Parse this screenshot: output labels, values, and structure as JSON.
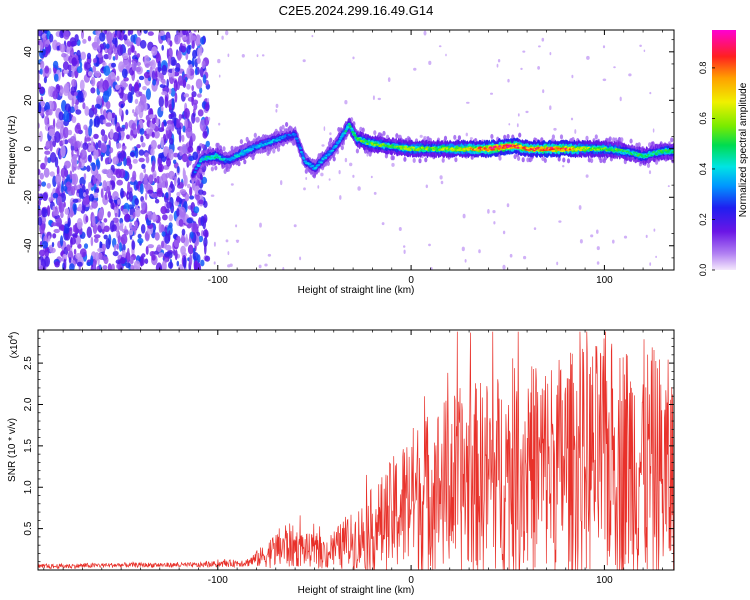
{
  "chart_data": [
    {
      "type": "heatmap",
      "title": "C2E5.2024.299.16.49.G14",
      "xlabel": "Height of straight line (km)",
      "ylabel": "Frequency (Hz)",
      "xlim": [
        -193,
        136
      ],
      "ylim": [
        -50,
        49
      ],
      "xticks": [
        -100,
        0,
        100
      ],
      "xtick_labels": [
        "-100",
        "0",
        "100"
      ],
      "yticks": [
        -40,
        -20,
        0,
        20,
        40
      ],
      "ytick_labels": [
        "-40",
        "-20",
        "0",
        "20",
        "40"
      ],
      "colorbar": {
        "label": "Normalized spectral amplitude",
        "range": [
          0.0,
          0.95
        ],
        "ticks": [
          0.0,
          0.2,
          0.4,
          0.6,
          0.8
        ],
        "tick_labels": [
          "0.0",
          "0.2",
          "0.4",
          "0.6",
          "0.8"
        ]
      },
      "noise_region": {
        "x_range": [
          -193,
          -105
        ],
        "amplitude_range": [
          0.05,
          0.3
        ]
      },
      "ridge": [
        {
          "x": -113,
          "freq": -11,
          "amp": 0.25
        },
        {
          "x": -108,
          "freq": -4,
          "amp": 0.4
        },
        {
          "x": -100,
          "freq": -3,
          "amp": 0.45
        },
        {
          "x": -95,
          "freq": -5,
          "amp": 0.35
        },
        {
          "x": -88,
          "freq": -2,
          "amp": 0.4
        },
        {
          "x": -80,
          "freq": 1,
          "amp": 0.35
        },
        {
          "x": -72,
          "freq": 3,
          "amp": 0.35
        },
        {
          "x": -65,
          "freq": 5,
          "amp": 0.3
        },
        {
          "x": -60,
          "freq": 6,
          "amp": 0.3
        },
        {
          "x": -55,
          "freq": -5,
          "amp": 0.35
        },
        {
          "x": -50,
          "freq": -8,
          "amp": 0.35
        },
        {
          "x": -45,
          "freq": -4,
          "amp": 0.35
        },
        {
          "x": -40,
          "freq": 0,
          "amp": 0.35
        },
        {
          "x": -35,
          "freq": 6,
          "amp": 0.4
        },
        {
          "x": -32,
          "freq": 10,
          "amp": 0.45
        },
        {
          "x": -28,
          "freq": 4,
          "amp": 0.5
        },
        {
          "x": -20,
          "freq": 2,
          "amp": 0.55
        },
        {
          "x": -10,
          "freq": 1,
          "amp": 0.5
        },
        {
          "x": 0,
          "freq": 0,
          "amp": 0.6
        },
        {
          "x": 10,
          "freq": 0,
          "amp": 0.55
        },
        {
          "x": 20,
          "freq": 0,
          "amp": 0.6
        },
        {
          "x": 30,
          "freq": 0,
          "amp": 0.7
        },
        {
          "x": 40,
          "freq": 0,
          "amp": 0.85
        },
        {
          "x": 50,
          "freq": 1,
          "amp": 0.9
        },
        {
          "x": 55,
          "freq": 1,
          "amp": 0.8
        },
        {
          "x": 60,
          "freq": 0,
          "amp": 0.75
        },
        {
          "x": 70,
          "freq": 0,
          "amp": 0.85
        },
        {
          "x": 80,
          "freq": 0,
          "amp": 0.8
        },
        {
          "x": 90,
          "freq": 0,
          "amp": 0.6
        },
        {
          "x": 100,
          "freq": 0,
          "amp": 0.55
        },
        {
          "x": 110,
          "freq": -1,
          "amp": 0.5
        },
        {
          "x": 115,
          "freq": -2,
          "amp": 0.45
        },
        {
          "x": 120,
          "freq": -3,
          "amp": 0.5
        },
        {
          "x": 125,
          "freq": -2,
          "amp": 0.45
        },
        {
          "x": 130,
          "freq": -1,
          "amp": 0.5
        },
        {
          "x": 136,
          "freq": -1,
          "amp": 0.45
        }
      ]
    },
    {
      "type": "line",
      "title": "",
      "xlabel": "Height of straight line (km)",
      "ylabel": "SNR (10 * v/v)",
      "yscale_label": "(x10",
      "yscale_exponent": "4",
      "yscale_close": ")",
      "xlim": [
        -193,
        136
      ],
      "ylim": [
        0,
        2.9
      ],
      "xticks": [
        -100,
        0,
        100
      ],
      "xtick_labels": [
        "-100",
        "0",
        "100"
      ],
      "yticks": [
        0.5,
        1.0,
        1.5,
        2.0,
        2.5
      ],
      "ytick_labels": [
        "0.5",
        "1.0",
        "1.5",
        "2.0",
        "2.5"
      ],
      "line_color": "#e8312a",
      "envelope": [
        {
          "x": -193,
          "base": 0.04,
          "spread": 0.03
        },
        {
          "x": -150,
          "base": 0.06,
          "spread": 0.03
        },
        {
          "x": -110,
          "base": 0.06,
          "spread": 0.03
        },
        {
          "x": -85,
          "base": 0.09,
          "spread": 0.05
        },
        {
          "x": -75,
          "base": 0.18,
          "spread": 0.15
        },
        {
          "x": -65,
          "base": 0.3,
          "spread": 0.3
        },
        {
          "x": -55,
          "base": 0.25,
          "spread": 0.2
        },
        {
          "x": -45,
          "base": 0.2,
          "spread": 0.2
        },
        {
          "x": -30,
          "base": 0.35,
          "spread": 0.35
        },
        {
          "x": -15,
          "base": 0.55,
          "spread": 0.6
        },
        {
          "x": 0,
          "base": 0.85,
          "spread": 0.9
        },
        {
          "x": 20,
          "base": 1.05,
          "spread": 1.1
        },
        {
          "x": 40,
          "base": 1.15,
          "spread": 1.2
        },
        {
          "x": 60,
          "base": 1.2,
          "spread": 1.3
        },
        {
          "x": 80,
          "base": 1.3,
          "spread": 1.35
        },
        {
          "x": 100,
          "base": 1.35,
          "spread": 1.45
        },
        {
          "x": 120,
          "base": 1.3,
          "spread": 1.5
        },
        {
          "x": 136,
          "base": 1.1,
          "spread": 1.4
        }
      ]
    }
  ]
}
